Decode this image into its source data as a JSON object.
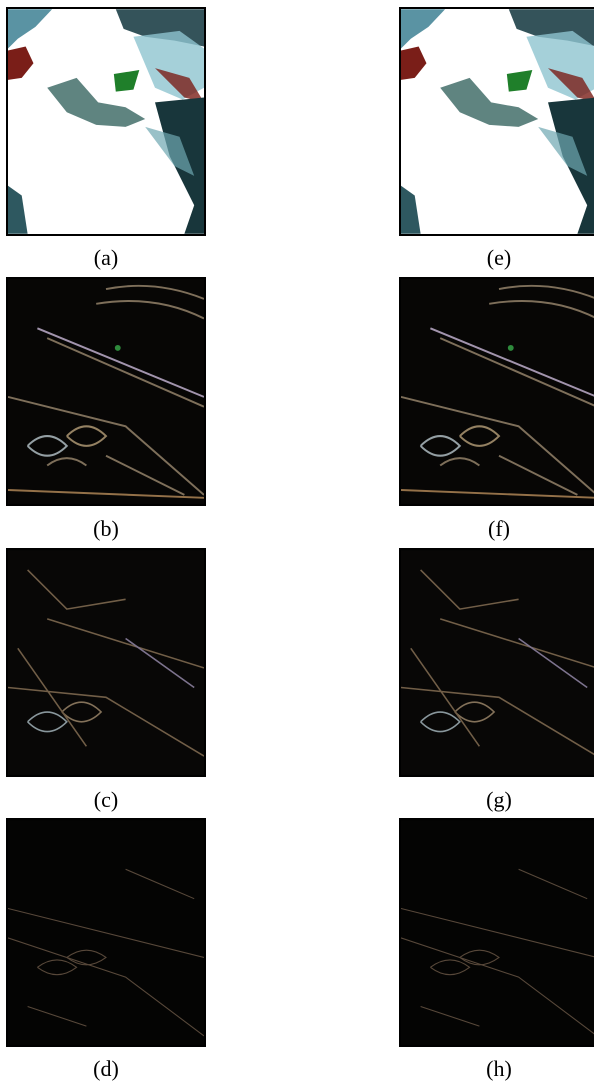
{
  "figure": {
    "panels": [
      {
        "id": "a",
        "caption": "(a)",
        "style": "smooth"
      },
      {
        "id": "b",
        "caption": "(b)",
        "style": "edges-strong"
      },
      {
        "id": "c",
        "caption": "(c)",
        "style": "edges-medium"
      },
      {
        "id": "d",
        "caption": "(d)",
        "style": "edges-fine"
      },
      {
        "id": "e",
        "caption": "(e)",
        "style": "smooth"
      },
      {
        "id": "f",
        "caption": "(f)",
        "style": "edges-strong"
      },
      {
        "id": "g",
        "caption": "(g)",
        "style": "edges-medium"
      },
      {
        "id": "h",
        "caption": "(h)",
        "style": "edges-fine"
      }
    ]
  }
}
